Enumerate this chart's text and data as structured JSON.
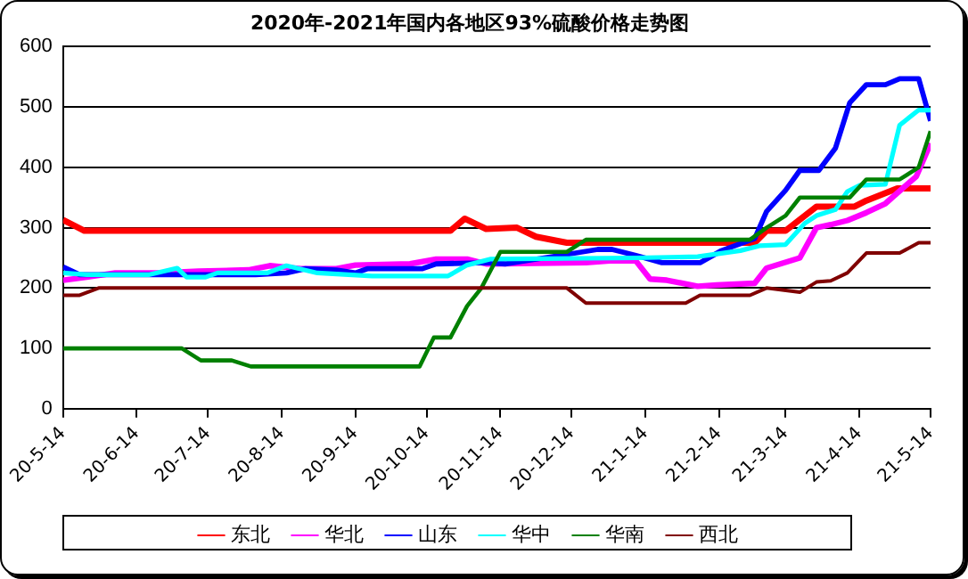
{
  "chart_data": {
    "type": "line",
    "title": "2020年-2021年国内各地区93%硫酸价格走势图",
    "marker": "none",
    "line_style": "solid",
    "grid": "y",
    "legend": "bottom",
    "xlim": [
      "2020-05-14",
      "2021-05-14"
    ],
    "xticks": [
      {
        "value": "2020-05-14",
        "label": "20-5-14"
      },
      {
        "value": "2020-06-14",
        "label": "20-6-14"
      },
      {
        "value": "2020-07-14",
        "label": "20-7-14"
      },
      {
        "value": "2020-08-14",
        "label": "20-8-14"
      },
      {
        "value": "2020-09-14",
        "label": "20-9-14"
      },
      {
        "value": "2020-10-14",
        "label": "20-10-14"
      },
      {
        "value": "2020-11-14",
        "label": "20-11-14"
      },
      {
        "value": "2020-12-14",
        "label": "20-12-14"
      },
      {
        "value": "2021-01-14",
        "label": "21-1-14"
      },
      {
        "value": "2021-02-14",
        "label": "21-2-14"
      },
      {
        "value": "2021-03-14",
        "label": "21-3-14"
      },
      {
        "value": "2021-04-14",
        "label": "21-4-14"
      },
      {
        "value": "2021-05-14",
        "label": "21-5-14"
      }
    ],
    "ylim": [
      0,
      600
    ],
    "yticks": [
      0,
      100,
      200,
      300,
      400,
      500,
      600
    ],
    "series": [
      {
        "name": "东北",
        "color": "#ff0000",
        "x": [
          "2020-05-14",
          "2020-05-23",
          "2020-10-24",
          "2020-10-30",
          "2020-11-08",
          "2020-11-21",
          "2020-11-29",
          "2020-12-12",
          "2021-03-01",
          "2021-03-06",
          "2021-03-14",
          "2021-03-27",
          "2021-04-12",
          "2021-04-17",
          "2021-04-30",
          "2021-05-14"
        ],
        "values": [
          313,
          295,
          295,
          315,
          298,
          300,
          285,
          275,
          275,
          295,
          295,
          335,
          335,
          345,
          365,
          365
        ]
      },
      {
        "name": "华北",
        "color": "#ff00ff",
        "x": [
          "2020-05-14",
          "2020-05-24",
          "2020-06-05",
          "2020-06-24",
          "2020-07-10",
          "2020-07-31",
          "2020-08-09",
          "2020-08-22",
          "2020-09-06",
          "2020-09-14",
          "2020-10-07",
          "2020-10-18",
          "2020-10-31",
          "2020-11-08",
          "2020-12-20",
          "2020-12-30",
          "2021-01-10",
          "2021-01-16",
          "2021-01-23",
          "2021-02-05",
          "2021-02-13",
          "2021-03-01",
          "2021-03-06",
          "2021-03-20",
          "2021-03-27",
          "2021-04-02",
          "2021-04-09",
          "2021-04-17",
          "2021-04-25",
          "2021-05-08",
          "2021-05-14"
        ],
        "values": [
          213,
          218,
          225,
          225,
          228,
          230,
          237,
          232,
          232,
          238,
          240,
          248,
          248,
          240,
          242,
          245,
          245,
          215,
          213,
          203,
          205,
          208,
          233,
          250,
          300,
          305,
          312,
          325,
          340,
          385,
          440
        ]
      },
      {
        "name": "山东",
        "color": "#0000ff",
        "x": [
          "2020-05-14",
          "2020-05-21",
          "2020-08-03",
          "2020-08-16",
          "2020-08-24",
          "2020-09-06",
          "2020-09-14",
          "2020-09-19",
          "2020-10-12",
          "2020-10-18",
          "2020-11-08",
          "2020-11-16",
          "2020-12-14",
          "2020-12-25",
          "2020-12-31",
          "2021-01-10",
          "2021-01-21",
          "2021-02-06",
          "2021-02-15",
          "2021-03-01",
          "2021-03-06",
          "2021-03-14",
          "2021-03-20",
          "2021-03-28",
          "2021-04-04",
          "2021-04-10",
          "2021-04-17",
          "2021-04-25",
          "2021-05-01",
          "2021-05-09",
          "2021-05-14"
        ],
        "values": [
          235,
          222,
          222,
          225,
          232,
          230,
          225,
          232,
          232,
          240,
          242,
          240,
          257,
          264,
          264,
          254,
          242,
          242,
          262,
          282,
          327,
          362,
          395,
          395,
          432,
          507,
          537,
          537,
          547,
          547,
          477
        ]
      },
      {
        "name": "华中",
        "color": "#00ffff",
        "x": [
          "2020-05-14",
          "2020-05-24",
          "2020-06-19",
          "2020-07-01",
          "2020-07-05",
          "2020-07-13",
          "2020-07-18",
          "2020-08-08",
          "2020-08-16",
          "2020-08-29",
          "2020-09-11",
          "2020-09-21",
          "2020-10-23",
          "2020-10-31",
          "2020-11-10",
          "2021-01-10",
          "2021-02-05",
          "2021-02-23",
          "2021-03-03",
          "2021-03-14",
          "2021-03-22",
          "2021-03-27",
          "2021-04-04",
          "2021-04-09",
          "2021-04-14",
          "2021-04-25",
          "2021-05-01",
          "2021-05-09",
          "2021-05-14"
        ],
        "values": [
          225,
          222,
          222,
          233,
          218,
          218,
          225,
          225,
          237,
          225,
          222,
          220,
          220,
          238,
          248,
          250,
          252,
          262,
          270,
          272,
          307,
          320,
          330,
          360,
          370,
          372,
          470,
          495,
          495
        ]
      },
      {
        "name": "华南",
        "color": "#008000",
        "x": [
          "2020-05-14",
          "2020-07-03",
          "2020-07-11",
          "2020-07-24",
          "2020-08-01",
          "2020-10-11",
          "2020-10-17",
          "2020-10-24",
          "2020-10-31",
          "2020-11-06",
          "2020-11-14",
          "2020-12-12",
          "2020-12-20",
          "2021-02-27",
          "2021-03-06",
          "2021-03-14",
          "2021-03-20",
          "2021-04-10",
          "2021-04-17",
          "2021-05-01",
          "2021-05-09",
          "2021-05-14"
        ],
        "values": [
          100,
          100,
          80,
          80,
          70,
          70,
          118,
          118,
          170,
          200,
          260,
          260,
          280,
          280,
          300,
          320,
          350,
          350,
          380,
          380,
          400,
          460
        ]
      },
      {
        "name": "西北",
        "color": "#800000",
        "x": [
          "2020-05-14",
          "2020-05-21",
          "2020-05-29",
          "2020-12-12",
          "2020-12-20",
          "2021-01-31",
          "2021-02-06",
          "2021-02-27",
          "2021-03-06",
          "2021-03-20",
          "2021-03-27",
          "2021-04-02",
          "2021-04-09",
          "2021-04-17",
          "2021-05-01",
          "2021-05-09",
          "2021-05-14"
        ],
        "values": [
          188,
          188,
          200,
          200,
          175,
          175,
          188,
          188,
          200,
          193,
          210,
          212,
          225,
          258,
          258,
          275,
          275
        ]
      }
    ]
  }
}
